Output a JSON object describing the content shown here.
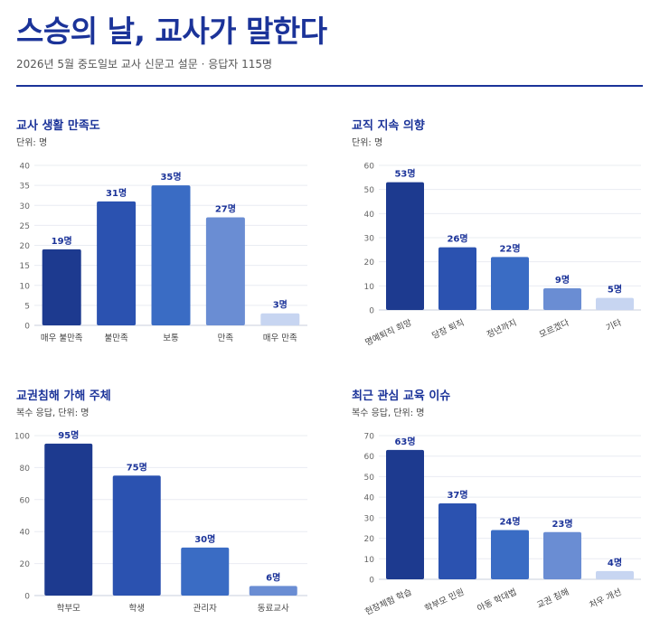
{
  "header": {
    "title": "스승의 날, 교사가 말한다",
    "subtitle": "2026년 5월 중도일보 교사 신문고 설문 · 응답자 115명"
  },
  "value_suffix": "명",
  "palette": [
    "#1d3a8f",
    "#2b52b0",
    "#3a6cc4",
    "#6a8dd3",
    "#c7d5f1"
  ],
  "chart_data": [
    {
      "type": "bar",
      "title": "교사 생활 만족도",
      "unit_note": "단위: 명",
      "categories": [
        "매우 불만족",
        "불만족",
        "보통",
        "만족",
        "매우 만족"
      ],
      "values": [
        19,
        31,
        35,
        27,
        3
      ],
      "ylim": [
        0,
        40
      ],
      "yticks": [
        0,
        5,
        10,
        15,
        20,
        25,
        30,
        35,
        40
      ],
      "grid": true
    },
    {
      "type": "bar",
      "title": "교직 지속 의향",
      "unit_note": "단위: 명",
      "categories": [
        "명예퇴직 희망",
        "당장 퇴직",
        "정년까지",
        "모르겠다",
        "기타"
      ],
      "values": [
        53,
        26,
        22,
        9,
        5
      ],
      "ylim": [
        0,
        60
      ],
      "yticks": [
        0,
        10,
        20,
        30,
        40,
        50,
        60
      ],
      "grid": true
    },
    {
      "type": "bar",
      "title": "교권침해 가해 주체",
      "unit_note": "복수 응답, 단위: 명",
      "categories": [
        "학부모",
        "학생",
        "관리자",
        "동료교사"
      ],
      "values": [
        95,
        75,
        30,
        6
      ],
      "ylim": [
        0,
        100
      ],
      "yticks": [
        0,
        20,
        40,
        60,
        80,
        100
      ],
      "grid": true
    },
    {
      "type": "bar",
      "title": "최근 관심 교육 이슈",
      "unit_note": "복수 응답, 단위: 명",
      "categories": [
        "현장체험 학습",
        "학부모 민원",
        "아동 학대법",
        "교권 침해",
        "처우 개선"
      ],
      "values": [
        63,
        37,
        24,
        23,
        4
      ],
      "ylim": [
        0,
        70
      ],
      "yticks": [
        0,
        10,
        20,
        30,
        40,
        50,
        60,
        70
      ],
      "grid": true
    }
  ]
}
